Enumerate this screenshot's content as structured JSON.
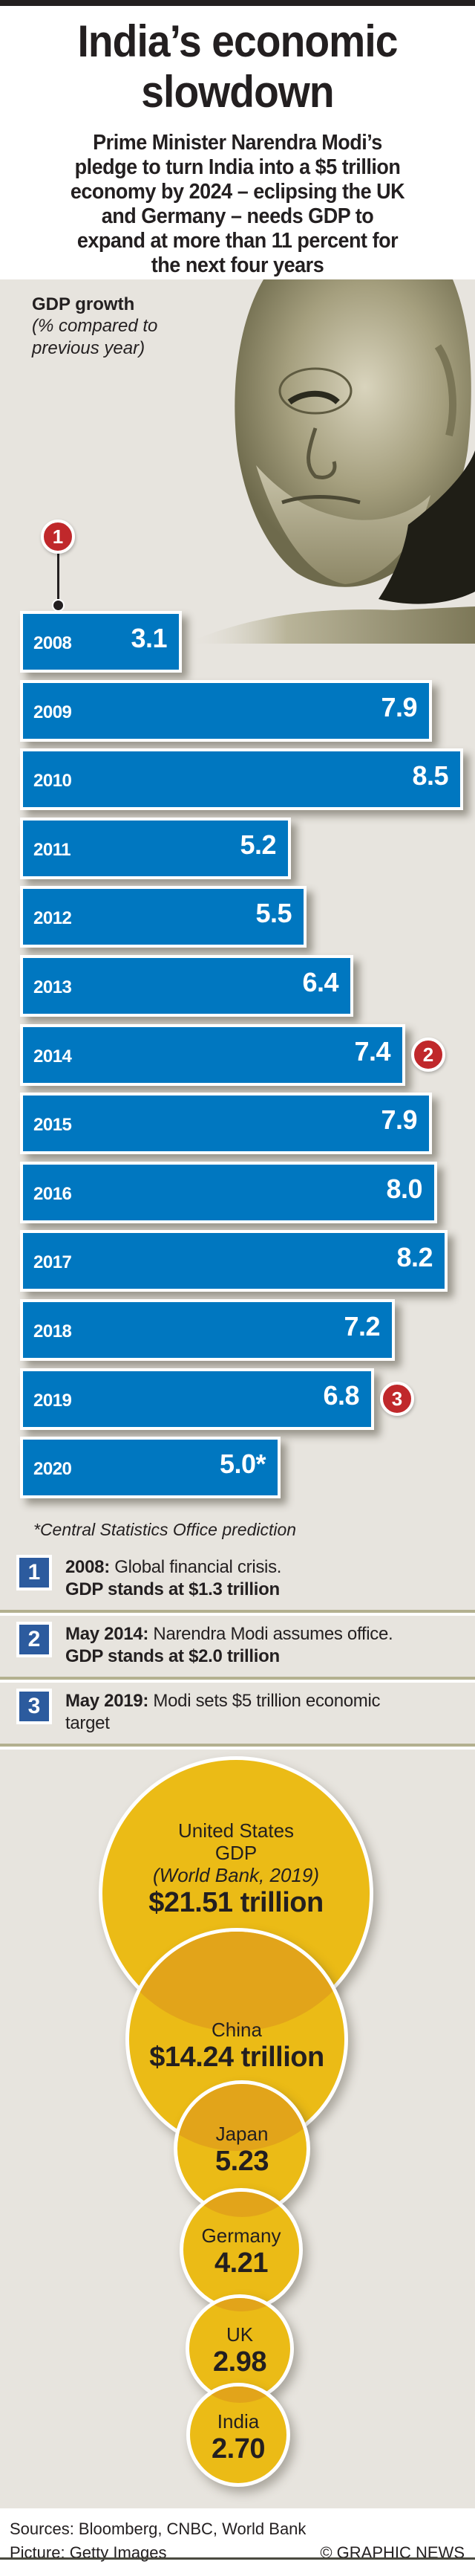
{
  "header": {
    "title_lines": [
      "India’s economic",
      "slowdown"
    ],
    "subtitle_lines": [
      "Prime Minister Narendra Modi’s",
      "pledge to turn India into a $5 trillion",
      "economy by 2024 – eclipsing the UK",
      "and Germany – needs GDP to",
      "expand at more than 11 percent for",
      "the next four years"
    ]
  },
  "gdp_section": {
    "heading": "GDP growth",
    "subheading_lines": [
      "(% compared to",
      "previous year)"
    ],
    "photo_icon": "portrait-photo",
    "footnote": "*Central Statistics Office prediction"
  },
  "colors": {
    "bar": "#0077c0",
    "marker": "#c0282b",
    "key_box": "#2c5b9e",
    "bubble": "#ebbb16",
    "bubble_overlap": "#e2a41a",
    "panel": "#e7e4de"
  },
  "chart_data": [
    {
      "type": "bar",
      "orientation": "horizontal",
      "title": "GDP growth",
      "subtitle": "(% compared to previous year)",
      "xlabel": "",
      "ylabel": "",
      "grid": false,
      "xlim": [
        0,
        9
      ],
      "categories": [
        "2008",
        "2009",
        "2010",
        "2011",
        "2012",
        "2013",
        "2014",
        "2015",
        "2016",
        "2017",
        "2018",
        "2019",
        "2020"
      ],
      "values": [
        3.1,
        7.9,
        8.5,
        5.2,
        5.5,
        6.4,
        7.4,
        7.9,
        8.0,
        8.2,
        7.2,
        6.8,
        5.0
      ],
      "labels": [
        "3.1",
        "7.9",
        "8.5",
        "5.2",
        "5.5",
        "6.4",
        "7.4",
        "7.9",
        "8.0",
        "8.2",
        "7.2",
        "6.8",
        "5.0*"
      ],
      "annotations": [
        {
          "marker": "1",
          "category": "2008"
        },
        {
          "marker": "2",
          "category": "2014"
        },
        {
          "marker": "3",
          "category": "2019"
        }
      ],
      "footnote": "*Central Statistics Office prediction"
    },
    {
      "type": "bubble",
      "title": "GDP (World Bank, 2019)",
      "unit": "$ trillion",
      "categories": [
        "United States",
        "China",
        "Japan",
        "Germany",
        "UK",
        "India"
      ],
      "values": [
        21.51,
        14.24,
        5.23,
        4.21,
        2.98,
        2.7
      ],
      "labels": [
        "$21.51 trillion",
        "$14.24 trillion",
        "5.23",
        "4.21",
        "2.98",
        "2.70"
      ]
    }
  ],
  "key": [
    {
      "number": "1",
      "bold": "2008:",
      "text": " Global financial crisis.",
      "line2_bold": "GDP stands at $1.3 trillion",
      "line2": ""
    },
    {
      "number": "2",
      "bold": "May 2014:",
      "text": " Narendra Modi assumes office.",
      "line2_bold": "GDP stands at $2.0 trillion",
      "line2": ""
    },
    {
      "number": "3",
      "bold": "May 2019:",
      "text": " Modi sets $5 trillion economic",
      "line2_bold": "",
      "line2": "target"
    }
  ],
  "bubbles": {
    "us": {
      "name": "United States",
      "sub1": "GDP",
      "sub2": "(World Bank, 2019)",
      "value": "$21.51 trillion"
    },
    "china": {
      "name": "China",
      "value": "$14.24 trillion"
    },
    "japan": {
      "name": "Japan",
      "value": "5.23"
    },
    "germany": {
      "name": "Germany",
      "value": "4.21"
    },
    "uk": {
      "name": "UK",
      "value": "2.98"
    },
    "india": {
      "name": "India",
      "value": "2.70"
    }
  },
  "footer": {
    "sources": "Sources: Bloomberg, CNBC, World Bank",
    "picture": "Picture: Getty Images",
    "credit": "© GRAPHIC NEWS"
  }
}
